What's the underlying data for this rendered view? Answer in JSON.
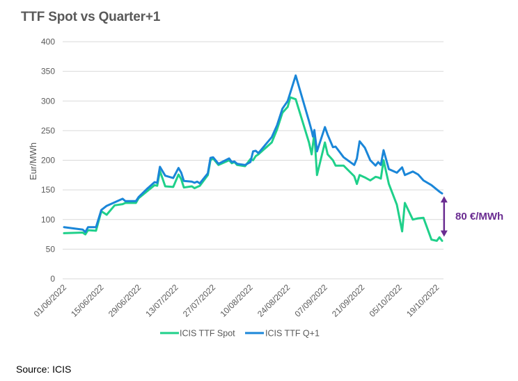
{
  "title": "TTF Spot vs Quarter+1",
  "source": "Source: ICIS",
  "chart_data": {
    "type": "line",
    "title": "TTF Spot vs Quarter+1",
    "xlabel": "",
    "ylabel": "Eur/MWh",
    "ylim": [
      0,
      400
    ],
    "yticks": [
      0,
      50,
      100,
      150,
      200,
      250,
      300,
      350,
      400
    ],
    "ytick_labels": [
      "0",
      "50",
      "100",
      "150",
      "200",
      "250",
      "300",
      "350",
      "400"
    ],
    "xtick_labels": [
      "01/06/2022",
      "15/06/2022",
      "29/06/2022",
      "13/07/2022",
      "27/07/2022",
      "10/08/2022",
      "24/08/2022",
      "07/09/2022",
      "21/09/2022",
      "05/10/2022",
      "19/10/2022"
    ],
    "xtick_days": [
      0,
      14,
      28,
      42,
      56,
      70,
      84,
      98,
      112,
      126,
      140
    ],
    "x_unit": "days since 01/06/2022",
    "xlim": [
      0,
      142
    ],
    "grid": true,
    "legend_position": "bottom",
    "series": [
      {
        "name": "ICIS TTF Spot",
        "color": "#1fd08a",
        "x": [
          0,
          7,
          8,
          9,
          12,
          14,
          16,
          19,
          22,
          23,
          27,
          28,
          31,
          34,
          35,
          36,
          38,
          41,
          43,
          44,
          45,
          48,
          49,
          50,
          51,
          54,
          55,
          56,
          58,
          62,
          63,
          64,
          65,
          68,
          70,
          71,
          72,
          73,
          78,
          80,
          82,
          84,
          85,
          87,
          92,
          93,
          94,
          95,
          98,
          99,
          101,
          102,
          105,
          109,
          110,
          111,
          113,
          115,
          117,
          118,
          119,
          120,
          122,
          125,
          127,
          128,
          131,
          133,
          135,
          138,
          140,
          141,
          142
        ],
        "values": [
          77,
          78,
          75,
          82,
          81,
          114,
          108,
          124,
          126,
          128,
          128,
          136,
          147,
          158,
          157,
          182,
          156,
          155,
          176,
          168,
          154,
          156,
          153,
          155,
          157,
          175,
          200,
          203,
          192,
          200,
          195,
          197,
          192,
          190,
          202,
          200,
          207,
          210,
          230,
          252,
          280,
          290,
          306,
          303,
          230,
          210,
          245,
          175,
          230,
          210,
          200,
          191,
          191,
          173,
          160,
          175,
          171,
          166,
          172,
          171,
          169,
          200,
          160,
          125,
          80,
          128,
          100,
          102,
          103,
          66,
          64,
          70,
          64
        ]
      },
      {
        "name": "ICIS TTF Q+1",
        "color": "#1a86d8",
        "x": [
          0,
          7,
          8,
          9,
          12,
          14,
          16,
          19,
          22,
          23,
          27,
          28,
          31,
          34,
          35,
          36,
          38,
          41,
          43,
          44,
          45,
          48,
          49,
          50,
          51,
          54,
          55,
          56,
          58,
          62,
          63,
          64,
          65,
          68,
          70,
          71,
          72,
          73,
          78,
          80,
          82,
          84,
          87,
          92,
          93,
          93.5,
          94,
          95,
          98,
          99,
          101,
          102,
          105,
          109,
          110,
          111,
          113,
          115,
          117,
          118,
          119,
          120,
          122,
          125,
          127,
          128,
          131,
          133,
          135,
          138,
          141,
          142
        ],
        "values": [
          87,
          83,
          79,
          87,
          87,
          116,
          123,
          129,
          135,
          131,
          131,
          138,
          151,
          163,
          162,
          189,
          174,
          170,
          187,
          179,
          165,
          164,
          162,
          164,
          161,
          178,
          204,
          205,
          194,
          203,
          197,
          198,
          194,
          192,
          197,
          215,
          216,
          212,
          239,
          259,
          287,
          300,
          343,
          266,
          250,
          240,
          251,
          215,
          256,
          243,
          222,
          223,
          205,
          192,
          203,
          232,
          221,
          200,
          191,
          197,
          192,
          217,
          185,
          179,
          188,
          175,
          181,
          176,
          166,
          158,
          147,
          144
        ]
      }
    ],
    "annotation": {
      "label": "80 €/MWh",
      "color": "#6a2c91",
      "from_value": 144,
      "to_value": 64,
      "at_day": 143
    }
  }
}
